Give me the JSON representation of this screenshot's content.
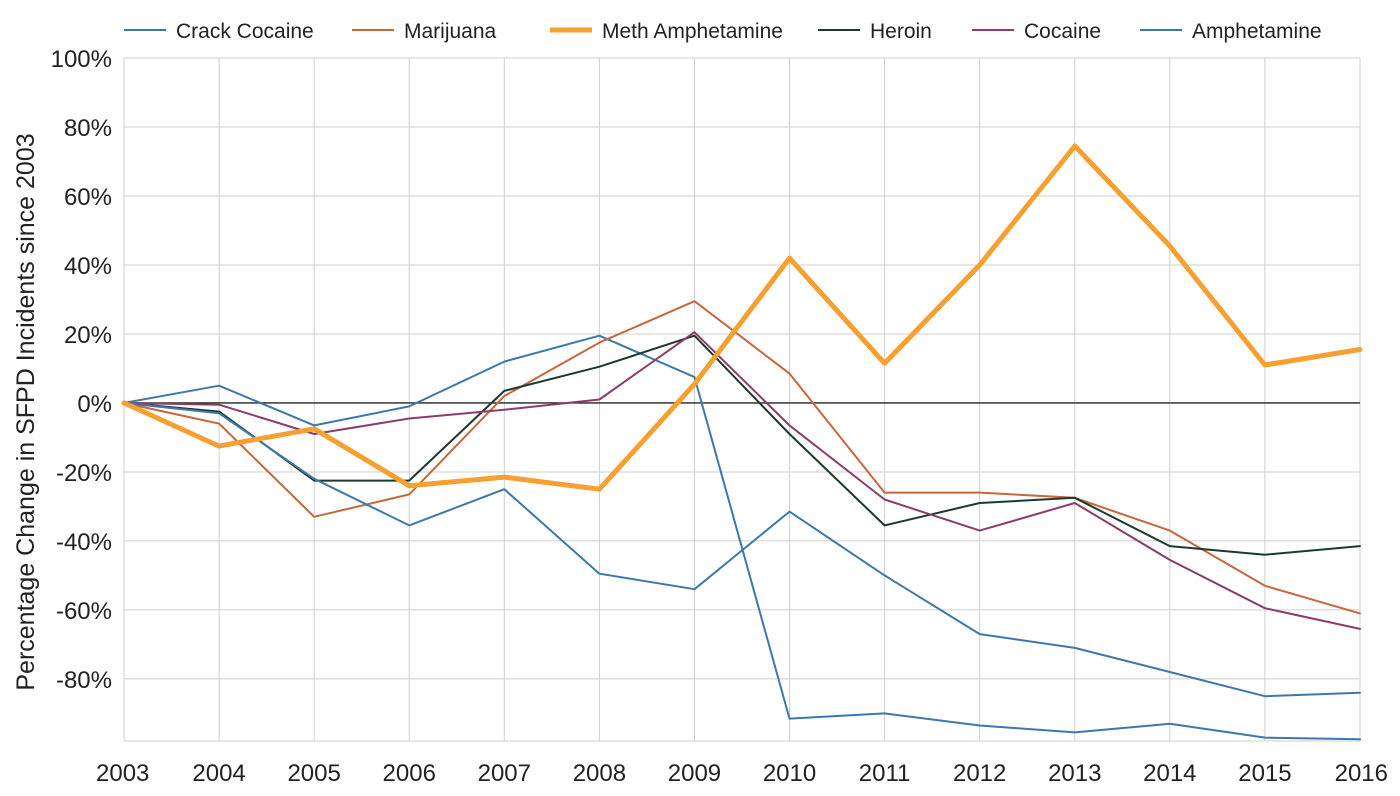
{
  "chart_data": {
    "type": "line",
    "title": "",
    "xlabel": "",
    "ylabel": "Percentage Change in SFPD Incidents since 2003",
    "categories": [
      "2003",
      "2004",
      "2005",
      "2006",
      "2007",
      "2008",
      "2009",
      "2010",
      "2011",
      "2012",
      "2013",
      "2014",
      "2015",
      "2016"
    ],
    "ylim": [
      -98,
      100
    ],
    "yticks": [
      100,
      80,
      60,
      40,
      20,
      0,
      -20,
      -40,
      -60,
      -80
    ],
    "ytick_labels": [
      "100%",
      "80%",
      "60%",
      "40%",
      "20%",
      "0%",
      "-20%",
      "-40%",
      "-60%",
      "-80%"
    ],
    "grid": true,
    "zero_line": true,
    "legend_position": "top",
    "series": [
      {
        "name": "Crack Cocaine",
        "color": "#3c78aa",
        "width": 2,
        "values": [
          0,
          5,
          -6.5,
          -1,
          12,
          19.5,
          7.5,
          -91.5,
          -90,
          -93.5,
          -95.5,
          -93,
          -97,
          -97.5
        ]
      },
      {
        "name": "Marijuana",
        "color": "#c8663c",
        "width": 2,
        "values": [
          0,
          -6,
          -33,
          -26.5,
          2,
          17.5,
          29.5,
          8.5,
          -26,
          -26,
          -27.5,
          -37,
          -53,
          -61
        ]
      },
      {
        "name": "Meth Amphetamine",
        "color": "#f5a030",
        "width": 5,
        "values": [
          0,
          -12.5,
          -7.5,
          -24,
          -21.5,
          -25,
          5.5,
          42,
          11.5,
          40,
          74.5,
          45.5,
          11,
          15.5
        ]
      },
      {
        "name": "Heroin",
        "color": "#1a3a2a",
        "width": 2,
        "values": [
          0,
          -2.5,
          -22.5,
          -22.5,
          3.5,
          10.5,
          19.5,
          -9,
          -35.5,
          -29,
          -27.5,
          -41.5,
          -44,
          -41.5
        ]
      },
      {
        "name": "Cocaine",
        "color": "#8c3c68",
        "width": 2,
        "values": [
          0,
          -0.5,
          -9,
          -4.5,
          -2,
          1,
          20.5,
          -6.5,
          -28,
          -37,
          -29,
          -45.5,
          -59.5,
          -65.5
        ]
      },
      {
        "name": "Amphetamine",
        "color": "#3c78aa",
        "width": 2,
        "values": [
          0,
          -3,
          -22,
          -35.5,
          -25,
          -49.5,
          -54,
          -31.5,
          -50,
          -67,
          -71,
          -78,
          -85,
          -84
        ]
      }
    ]
  }
}
